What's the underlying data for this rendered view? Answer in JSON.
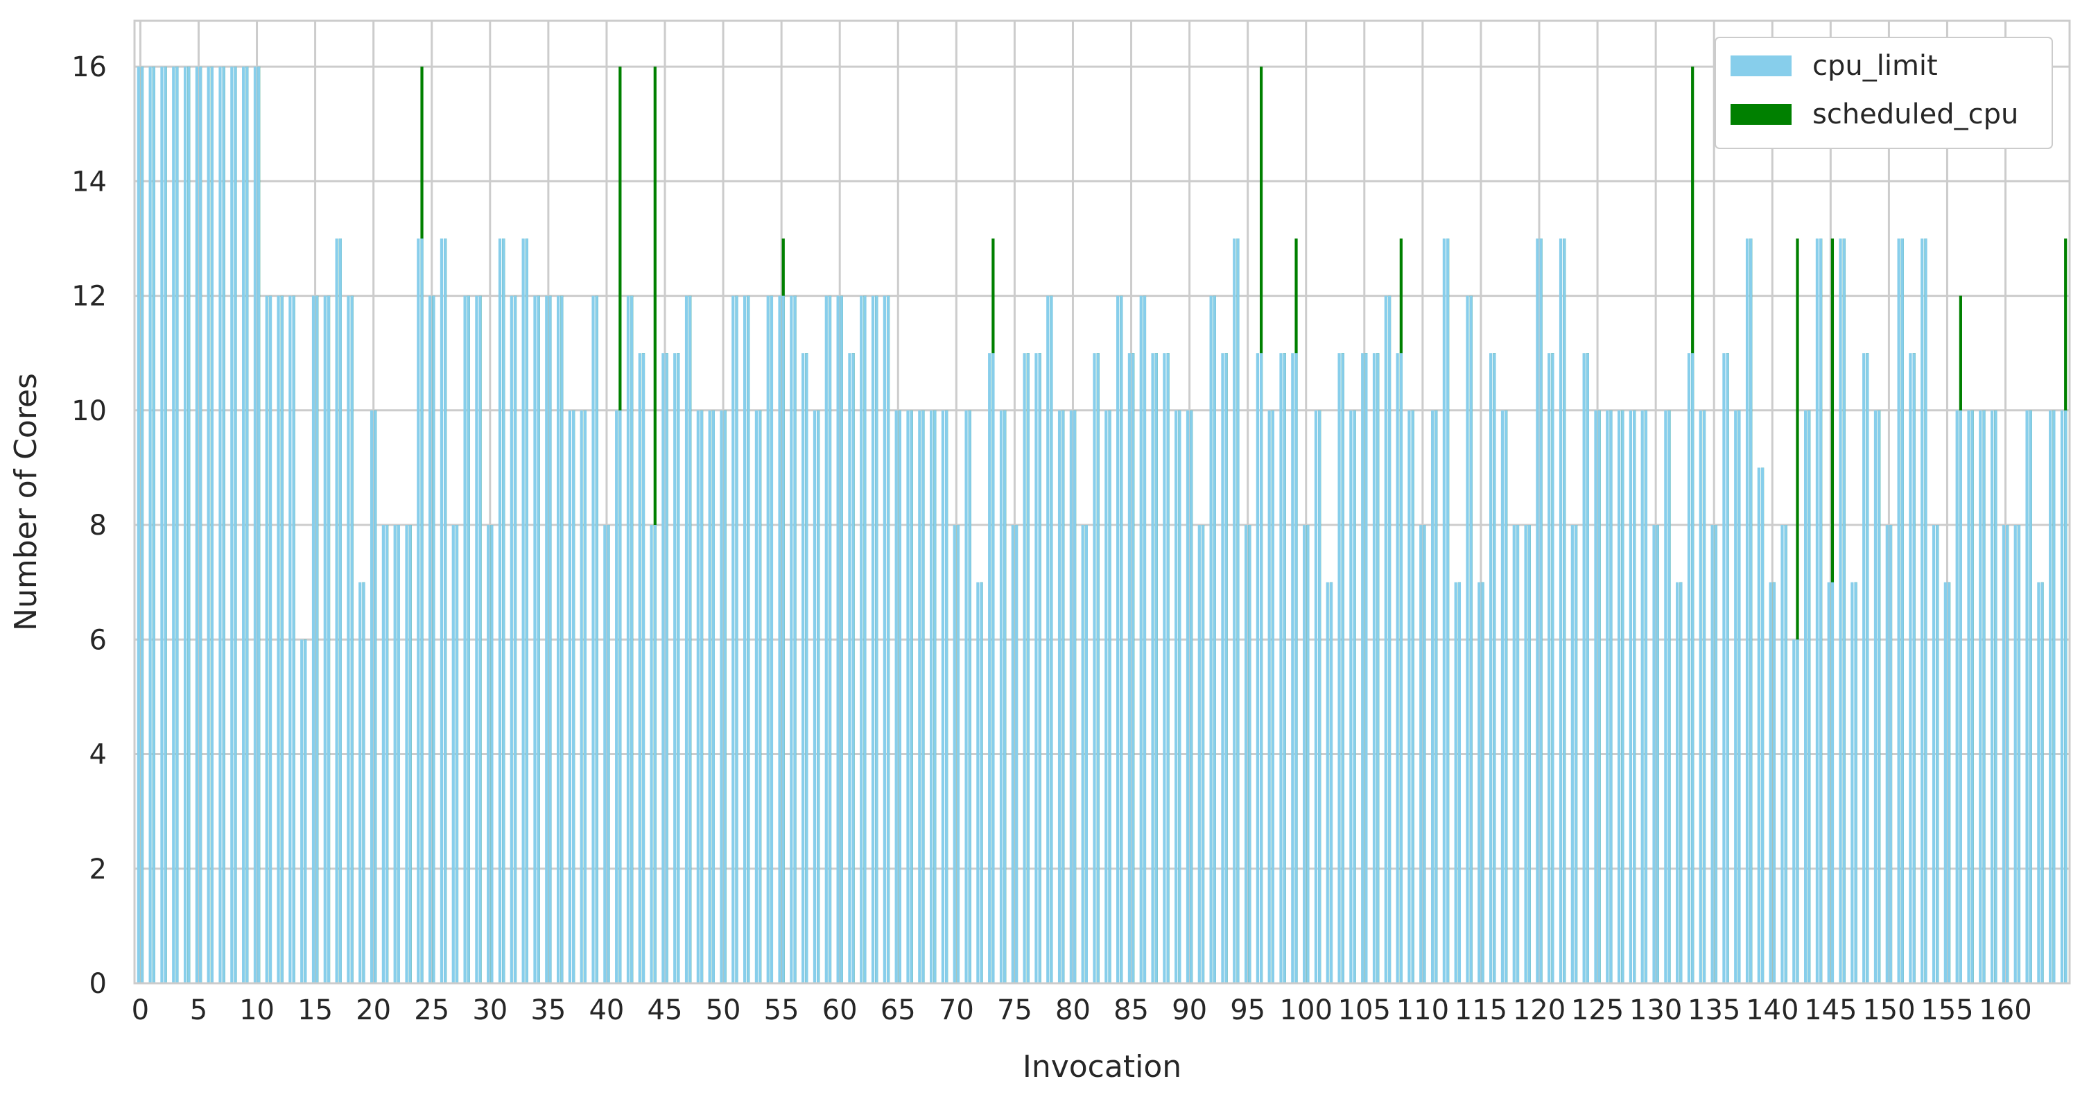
{
  "chart_data": {
    "type": "bar",
    "xlabel": "Invocation",
    "ylabel": "Number of Cores",
    "ylim": [
      0,
      16.8
    ],
    "yticks": [
      0,
      2,
      4,
      6,
      8,
      10,
      12,
      14,
      16
    ],
    "xticks": [
      0,
      5,
      10,
      15,
      20,
      25,
      30,
      35,
      40,
      45,
      50,
      55,
      60,
      65,
      70,
      75,
      80,
      85,
      90,
      95,
      100,
      105,
      110,
      115,
      120,
      125,
      130,
      135,
      140,
      145,
      150,
      155,
      160
    ],
    "grid": true,
    "legend_position": "top-right",
    "x_start": 0,
    "series": [
      {
        "name": "cpu_limit",
        "color": "#87ceeb",
        "values": [
          16,
          16,
          16,
          16,
          16,
          16,
          16,
          16,
          16,
          16,
          16,
          12,
          12,
          12,
          6,
          12,
          12,
          13,
          12,
          7,
          10,
          8,
          8,
          8,
          13,
          12,
          13,
          8,
          12,
          12,
          8,
          13,
          12,
          13,
          12,
          12,
          12,
          10,
          10,
          12,
          8,
          10,
          12,
          11,
          8,
          11,
          11,
          12,
          10,
          10,
          10,
          12,
          12,
          10,
          12,
          12,
          12,
          11,
          10,
          12,
          12,
          11,
          12,
          12,
          12,
          10,
          10,
          10,
          10,
          10,
          8,
          10,
          7,
          11,
          10,
          8,
          11,
          11,
          12,
          10,
          10,
          8,
          11,
          10,
          12,
          11,
          12,
          11,
          11,
          10,
          10,
          8,
          12,
          11,
          13,
          8,
          11,
          10,
          11,
          11,
          8,
          10,
          7,
          11,
          10,
          11,
          11,
          12,
          11,
          10,
          8,
          10,
          13,
          7,
          12,
          7,
          11,
          10,
          8,
          8,
          13,
          11,
          13,
          8,
          11,
          10,
          10,
          10,
          10,
          10,
          8,
          10,
          7,
          11,
          10,
          8,
          11,
          10,
          13,
          9,
          7,
          8,
          6,
          10,
          13,
          7,
          13,
          7,
          11,
          10,
          8,
          13,
          11,
          13,
          8,
          7,
          10,
          10,
          10,
          10,
          8,
          8,
          10,
          7,
          10,
          10
        ],
        "show_values": false
      },
      {
        "name": "scheduled_cpu",
        "color": "#008000",
        "values": [
          16,
          16,
          16,
          16,
          16,
          16,
          16,
          16,
          16,
          16,
          16,
          12,
          12,
          12,
          6,
          12,
          12,
          13,
          12,
          7,
          10,
          8,
          8,
          8,
          16,
          12,
          13,
          8,
          12,
          12,
          8,
          13,
          12,
          13,
          12,
          12,
          12,
          10,
          10,
          12,
          8,
          16,
          12,
          11,
          16,
          11,
          11,
          12,
          10,
          10,
          10,
          12,
          12,
          10,
          12,
          13,
          12,
          11,
          10,
          12,
          12,
          11,
          12,
          12,
          12,
          10,
          10,
          10,
          10,
          10,
          8,
          10,
          7,
          13,
          10,
          8,
          11,
          11,
          12,
          10,
          10,
          8,
          11,
          10,
          12,
          11,
          12,
          11,
          11,
          10,
          10,
          8,
          12,
          11,
          13,
          8,
          16,
          10,
          11,
          13,
          8,
          10,
          7,
          11,
          10,
          11,
          11,
          12,
          13,
          10,
          8,
          10,
          13,
          7,
          12,
          7,
          11,
          10,
          8,
          8,
          13,
          11,
          13,
          8,
          11,
          10,
          10,
          10,
          10,
          10,
          8,
          10,
          7,
          16,
          10,
          8,
          11,
          10,
          13,
          9,
          7,
          8,
          13,
          10,
          13,
          13,
          13,
          7,
          11,
          10,
          8,
          13,
          11,
          13,
          8,
          7,
          12,
          10,
          10,
          10,
          8,
          8,
          10,
          7,
          10,
          13
        ]
      }
    ]
  }
}
